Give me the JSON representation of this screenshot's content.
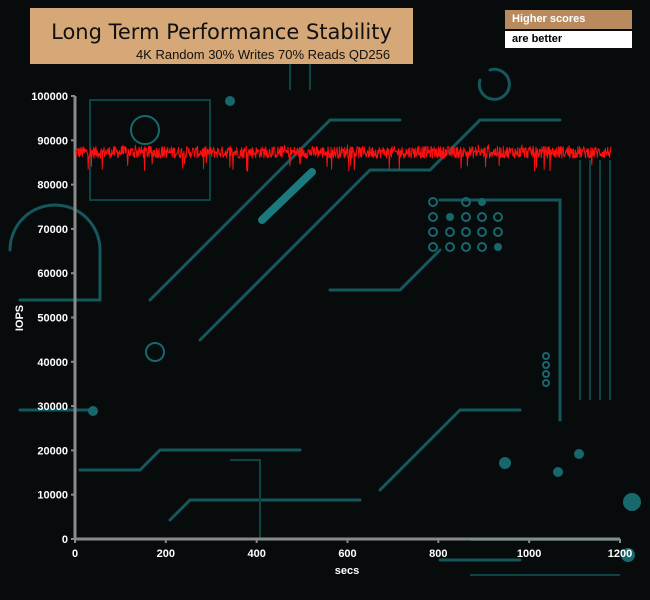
{
  "header": {
    "title": "Long Term Performance Stability",
    "subtitle": "4K Random 30% Writes 70% Reads QD256",
    "note_line1": "Higher scores",
    "note_line2": "are better"
  },
  "colors": {
    "series": "#ff1010",
    "axis": "#8a8a8a",
    "background": "#070b0c",
    "circuit": "#155a5e",
    "title_box": "#d6a877"
  },
  "chart_data": {
    "type": "line",
    "title": "Long Term Performance Stability",
    "subtitle": "4K Random 30% Writes 70% Reads QD256",
    "xlabel": "secs",
    "ylabel": "IOPS",
    "xlim": [
      0,
      1200
    ],
    "ylim": [
      0,
      100000
    ],
    "x_ticks": [
      0,
      200,
      400,
      600,
      800,
      1000,
      1200
    ],
    "y_ticks": [
      0,
      10000,
      20000,
      30000,
      40000,
      50000,
      60000,
      70000,
      80000,
      90000,
      100000
    ],
    "grid": false,
    "series": [
      {
        "x_range": [
          0,
          1180
        ],
        "x_step": 1,
        "typical_value": 87300,
        "typical_band": [
          86000,
          89000
        ],
        "min_dip": 83000
      }
    ]
  }
}
